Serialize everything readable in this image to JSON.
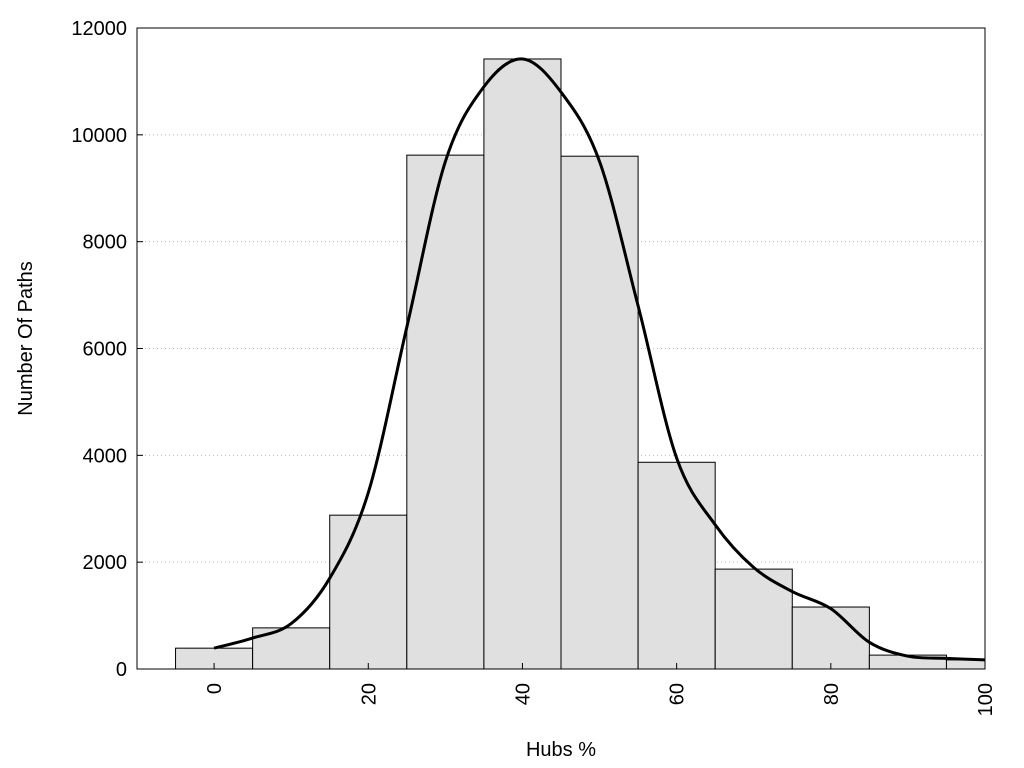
{
  "chart_data": {
    "type": "bar",
    "title": "",
    "xlabel": "Hubs %",
    "ylabel": "Number Of Paths",
    "x": [
      0,
      10,
      20,
      30,
      40,
      50,
      60,
      70,
      80,
      90,
      100
    ],
    "values": [
      390,
      770,
      2880,
      9620,
      11420,
      9600,
      3870,
      1870,
      1160,
      260,
      170
    ],
    "bin_width": 10,
    "xlim": [
      -10,
      100
    ],
    "ylim": [
      0,
      12000
    ],
    "xticks": [
      0,
      20,
      40,
      60,
      80,
      100
    ],
    "xtick_labels": [
      "0",
      "20",
      "40",
      "60",
      "80",
      "100"
    ],
    "yticks": [
      0,
      2000,
      4000,
      6000,
      8000,
      10000,
      12000
    ],
    "ytick_labels": [
      "0",
      "2000",
      "4000",
      "6000",
      "8000",
      "10000",
      "12000"
    ],
    "grid": "horizontal dotted",
    "legend": "none",
    "density_curve": {
      "x": [
        0,
        5,
        10,
        15,
        20,
        25,
        30,
        35,
        40,
        45,
        50,
        55,
        60,
        65,
        70,
        75,
        80,
        85,
        90,
        95,
        100
      ],
      "y": [
        390,
        580,
        850,
        1700,
        3300,
        6400,
        9500,
        10900,
        11420,
        10800,
        9500,
        6800,
        3950,
        2700,
        1900,
        1450,
        1130,
        500,
        240,
        200,
        170
      ]
    },
    "colors": {
      "bar_fill": "#e0e0e0",
      "bar_stroke": "#000000",
      "curve": "#000000",
      "grid": "#bbbbbb"
    }
  }
}
